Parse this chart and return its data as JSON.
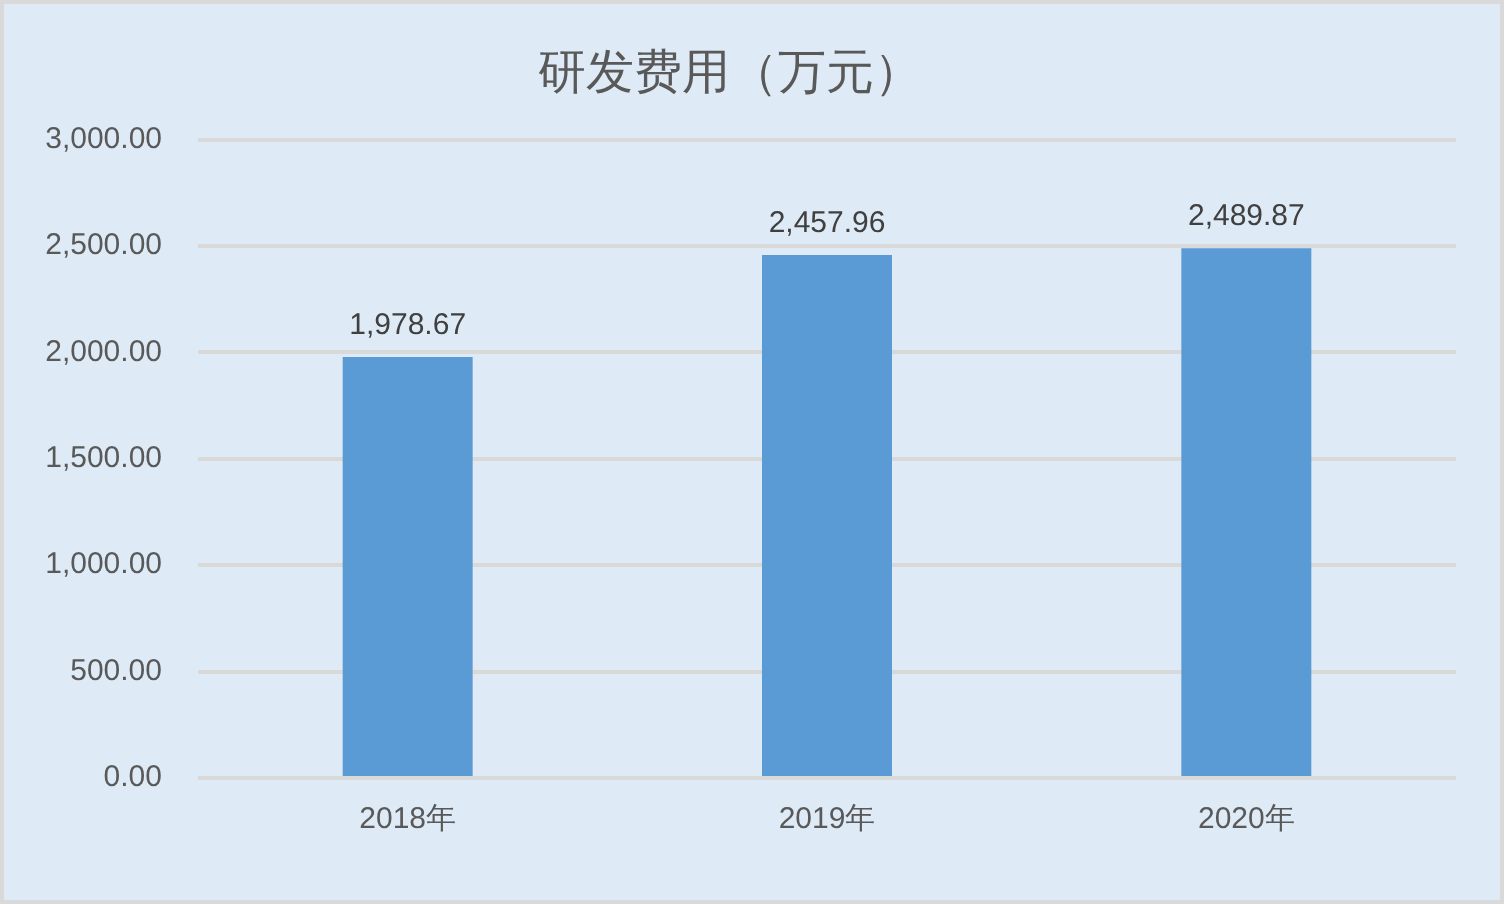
{
  "chart_data": {
    "type": "bar",
    "title": "研发费用（万元）",
    "categories": [
      "2018年",
      "2019年",
      "2020年"
    ],
    "values": [
      1978.67,
      2457.96,
      2489.87
    ],
    "value_labels": [
      "1,978.67",
      "2,457.96",
      "2,489.87"
    ],
    "color": "#5b9bd5",
    "ylim": [
      0,
      3000
    ],
    "yticks": [
      {
        "value": 0,
        "label": "0.00"
      },
      {
        "value": 500,
        "label": "500.00"
      },
      {
        "value": 1000,
        "label": "1,000.00"
      },
      {
        "value": 1500,
        "label": "1,500.00"
      },
      {
        "value": 2000,
        "label": "2,000.00"
      },
      {
        "value": 2500,
        "label": "2,500.00"
      },
      {
        "value": 3000,
        "label": "3,000.00"
      }
    ],
    "grid": "y"
  }
}
